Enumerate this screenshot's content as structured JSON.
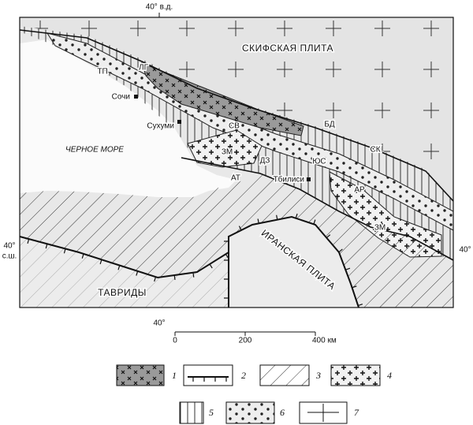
{
  "map": {
    "top_longitude": "40° в.д.",
    "left_latitude": {
      "degree": "40°",
      "suffix": "с.ш."
    },
    "right_latitude": "40°",
    "bottom_longitude": "40°",
    "labels": [
      "СКИФСКАЯ ПЛИТА",
      "ЛГ",
      "ТП",
      "Сочи",
      "СВ",
      "Сухуми",
      "БД",
      "ЧЕРНОЕ МОРЕ",
      "ЗМ",
      "ДЗ",
      "ЮС",
      "СК",
      "АТ",
      "Тбилиси",
      "АР",
      "ЗМ",
      "ИРАНСКАЯ ПЛИТА",
      "ТАВРИДЫ"
    ]
  },
  "scale": {
    "ticks": [
      "0",
      "200",
      "400 км"
    ]
  },
  "legend": [
    "1",
    "2",
    "3",
    "4",
    "5",
    "6",
    "7"
  ]
}
